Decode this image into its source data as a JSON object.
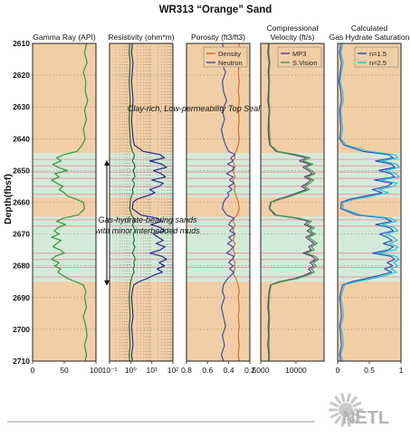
{
  "title": "WR313 “Orange” Sand",
  "y_axis_label": "Depth(fbsf)",
  "logo_text": "NETL",
  "annotations": [
    "Clay-rich, Low-permeability Top Seal",
    "Gas-hydrate-bearing sands",
    "with minor interbedded muds"
  ],
  "colors": {
    "background_tan": "#f2ceA6",
    "hydrate_band": "#d4ead8",
    "pink_line": "#e8a0a8",
    "gamma": "#2f9a3a",
    "resistivity_deep": "#2a2a8a",
    "resistivity_shallow": "#1a7a2a",
    "density": "#e06a30",
    "neutron": "#4a4aa8",
    "mp3": "#7a3a8a",
    "svision": "#3aa04a",
    "n15": "#3050c0",
    "n25": "#30c0d0"
  },
  "chart_data": {
    "type": "line",
    "title": "WR313 “Orange” Sand",
    "ylabel": "Depth(fbsf)",
    "ylim": [
      2610,
      2710
    ],
    "y_ticks": [
      2610,
      2620,
      2630,
      2640,
      2650,
      2660,
      2670,
      2680,
      2690,
      2700,
      2710
    ],
    "hydrate_zones": [
      [
        2644.5,
        2658.5
      ],
      [
        2664.5,
        2685.0
      ]
    ],
    "mud_lines": [
      2646.5,
      2648.5,
      2650.5,
      2652.5,
      2655.0,
      2657.5,
      2665.5,
      2667.5,
      2676.0,
      2678.0,
      2680.5,
      2683.5
    ],
    "depths": [
      2610,
      2613,
      2616,
      2619,
      2622,
      2625,
      2628,
      2631,
      2634,
      2637,
      2640,
      2642,
      2644,
      2645,
      2646,
      2647,
      2648,
      2649,
      2650,
      2651,
      2652,
      2653,
      2654,
      2655,
      2656,
      2657,
      2658,
      2659,
      2660,
      2662,
      2664,
      2665,
      2666,
      2667,
      2668,
      2669,
      2670,
      2671,
      2672,
      2673,
      2674,
      2675,
      2676,
      2677,
      2678,
      2679,
      2680,
      2681,
      2682,
      2683,
      2684,
      2685,
      2686,
      2688,
      2690,
      2693,
      2696,
      2699,
      2702,
      2705,
      2708,
      2710
    ],
    "tracks": [
      {
        "title": "Gamma Ray (API)",
        "scale": "linear",
        "xlim": [
          0,
          100
        ],
        "ticks": [
          0,
          50,
          100
        ],
        "tick_labels": [
          "0",
          "50",
          "100"
        ],
        "series": [
          {
            "color_key": "gamma",
            "values": [
              85,
              82,
              86,
              80,
              84,
              83,
              87,
              82,
              85,
              80,
              83,
              78,
              70,
              50,
              38,
              45,
              32,
              40,
              55,
              35,
              42,
              30,
              38,
              48,
              42,
              50,
              55,
              68,
              80,
              82,
              72,
              48,
              38,
              52,
              40,
              34,
              42,
              30,
              45,
              38,
              32,
              44,
              50,
              36,
              30,
              42,
              35,
              44,
              40,
              48,
              55,
              68,
              80,
              84,
              82,
              85,
              80,
              84,
              86,
              82,
              85,
              83
            ]
          }
        ]
      },
      {
        "title": "Resistivity (ohm*m)",
        "scale": "log",
        "xlim": [
          0.1,
          100
        ],
        "ticks": [
          0.1,
          1,
          10,
          100
        ],
        "tick_labels": [
          "10⁻¹",
          "10⁰",
          "10¹",
          "10²"
        ],
        "series": [
          {
            "color_key": "resistivity_deep",
            "values": [
              1.2,
              1.1,
              1.3,
              1.2,
              1.1,
              1.2,
              1.3,
              1.2,
              1.1,
              1.2,
              1.3,
              1.5,
              4,
              25,
              40,
              8,
              30,
              50,
              12,
              28,
              45,
              10,
              35,
              22,
              8,
              14,
              6,
              2,
              1.3,
              1.2,
              3,
              18,
              30,
              9,
              26,
              40,
              12,
              20,
              35,
              16,
              42,
              25,
              8,
              30,
              50,
              22,
              40,
              18,
              32,
              12,
              6,
              2.5,
              1.4,
              1.2,
              1.1,
              1.2,
              1.3,
              1.1,
              1.2,
              1.3,
              1.1,
              1.2
            ]
          },
          {
            "color_key": "resistivity_shallow",
            "values": [
              0.9,
              0.85,
              0.95,
              0.9,
              0.85,
              0.9,
              0.95,
              0.9,
              0.85,
              0.9,
              0.95,
              1.0,
              1.2,
              1.5,
              1.4,
              1.2,
              1.5,
              1.6,
              1.3,
              1.5,
              1.6,
              1.2,
              1.5,
              1.4,
              1.2,
              1.3,
              1.1,
              1.0,
              0.95,
              0.9,
              1.1,
              1.4,
              1.5,
              1.2,
              1.4,
              1.6,
              1.3,
              1.4,
              1.5,
              1.3,
              1.6,
              1.4,
              1.2,
              1.5,
              1.6,
              1.4,
              1.5,
              1.3,
              1.5,
              1.2,
              1.1,
              1.0,
              0.95,
              0.9,
              0.85,
              0.9,
              0.95,
              0.85,
              0.9,
              0.95,
              0.85,
              0.9
            ]
          }
        ]
      },
      {
        "title": "Porosity (ft3/ft3)",
        "scale": "linear",
        "reversed": true,
        "xlim": [
          0.8,
          0.2
        ],
        "ticks": [
          0.8,
          0.6,
          0.4,
          0.2
        ],
        "tick_labels": [
          "0.8",
          "0.6",
          "0.4",
          "0.2"
        ],
        "legend": [
          "Density",
          "Neutron"
        ],
        "series": [
          {
            "name": "Density",
            "color_key": "density",
            "values": [
              0.3,
              0.31,
              0.3,
              0.31,
              0.3,
              0.31,
              0.3,
              0.31,
              0.3,
              0.31,
              0.3,
              0.31,
              0.33,
              0.35,
              0.34,
              0.36,
              0.35,
              0.34,
              0.36,
              0.35,
              0.34,
              0.36,
              0.35,
              0.34,
              0.35,
              0.34,
              0.33,
              0.32,
              0.31,
              0.3,
              0.32,
              0.35,
              0.36,
              0.34,
              0.35,
              0.36,
              0.34,
              0.35,
              0.36,
              0.34,
              0.35,
              0.36,
              0.34,
              0.35,
              0.36,
              0.34,
              0.35,
              0.34,
              0.36,
              0.35,
              0.33,
              0.32,
              0.31,
              0.3,
              0.31,
              0.3,
              0.31,
              0.3,
              0.31,
              0.3,
              0.31,
              0.3
            ]
          },
          {
            "name": "Neutron",
            "color_key": "neutron",
            "values": [
              0.46,
              0.44,
              0.47,
              0.43,
              0.46,
              0.45,
              0.42,
              0.46,
              0.44,
              0.47,
              0.45,
              0.43,
              0.4,
              0.34,
              0.38,
              0.36,
              0.41,
              0.35,
              0.37,
              0.42,
              0.36,
              0.39,
              0.35,
              0.4,
              0.37,
              0.41,
              0.4,
              0.43,
              0.45,
              0.46,
              0.42,
              0.35,
              0.38,
              0.4,
              0.36,
              0.39,
              0.34,
              0.4,
              0.37,
              0.41,
              0.36,
              0.38,
              0.42,
              0.35,
              0.37,
              0.4,
              0.36,
              0.39,
              0.35,
              0.38,
              0.41,
              0.43,
              0.45,
              0.46,
              0.44,
              0.47,
              0.45,
              0.43,
              0.46,
              0.44,
              0.47,
              0.45
            ]
          }
        ]
      },
      {
        "title": "Compressional\nVelocity (ft/s)",
        "scale": "linear",
        "xlim": [
          5000,
          14000
        ],
        "ticks": [
          5000,
          10000
        ],
        "tick_labels": [
          "5000",
          "10000"
        ],
        "legend": [
          "MP3",
          "S.Vision"
        ],
        "series": [
          {
            "name": "MP3",
            "color_key": "mp3",
            "values": [
              6100,
              6000,
              6200,
              6050,
              6150,
              6100,
              6000,
              6200,
              6100,
              6050,
              6150,
              6300,
              7200,
              9500,
              11500,
              10500,
              12000,
              11000,
              11800,
              12300,
              11200,
              12100,
              11600,
              10800,
              11500,
              10200,
              9000,
              7500,
              6400,
              6200,
              7000,
              10000,
              11800,
              11200,
              12200,
              11600,
              12400,
              11400,
              12000,
              12600,
              11800,
              12200,
              11000,
              12300,
              12800,
              12000,
              12500,
              11800,
              12200,
              11200,
              9800,
              7600,
              6400,
              6200,
              6100,
              6000,
              6150,
              6050,
              6100,
              6000,
              6150,
              6100
            ]
          },
          {
            "name": "S.Vision",
            "color_key": "svision",
            "values": [
              6200,
              6150,
              6300,
              6200,
              6250,
              6200,
              6150,
              6300,
              6200,
              6250,
              6300,
              6400,
              7400,
              10000,
              12000,
              11000,
              12400,
              11400,
              12200,
              12700,
              11600,
              12500,
              12000,
              11200,
              11900,
              10600,
              9400,
              7800,
              6500,
              6300,
              7200,
              10400,
              12200,
              11600,
              12600,
              12000,
              12800,
              11800,
              12400,
              13000,
              12200,
              12600,
              11400,
              12700,
              13200,
              12400,
              12900,
              12200,
              12600,
              11600,
              10200,
              7900,
              6500,
              6300,
              6200,
              6150,
              6250,
              6200,
              6200,
              6150,
              6250,
              6200
            ]
          }
        ]
      },
      {
        "title": "Calculated\nGas Hydrate Saturation",
        "scale": "linear",
        "xlim": [
          0,
          1
        ],
        "ticks": [
          0,
          0.5,
          1
        ],
        "tick_labels": [
          "0",
          "0.5",
          "1"
        ],
        "legend": [
          "n=1.5",
          "n=2.5"
        ],
        "series": [
          {
            "name": "n=1.5",
            "color_key": "n15",
            "values": [
              0.05,
              0.03,
              0.06,
              0.04,
              0.02,
              0.05,
              0.06,
              0.03,
              0.04,
              0.05,
              0.03,
              0.1,
              0.4,
              0.8,
              0.88,
              0.6,
              0.85,
              0.9,
              0.65,
              0.84,
              0.9,
              0.58,
              0.86,
              0.78,
              0.55,
              0.7,
              0.45,
              0.2,
              0.06,
              0.05,
              0.3,
              0.75,
              0.85,
              0.6,
              0.82,
              0.88,
              0.66,
              0.78,
              0.86,
              0.72,
              0.88,
              0.8,
              0.55,
              0.84,
              0.9,
              0.78,
              0.87,
              0.74,
              0.85,
              0.66,
              0.45,
              0.22,
              0.08,
              0.05,
              0.03,
              0.05,
              0.06,
              0.03,
              0.05,
              0.06,
              0.03,
              0.05
            ]
          },
          {
            "name": "n=2.5",
            "color_key": "n25",
            "values": [
              0.08,
              0.05,
              0.09,
              0.06,
              0.04,
              0.08,
              0.09,
              0.05,
              0.06,
              0.08,
              0.05,
              0.14,
              0.5,
              0.9,
              0.95,
              0.7,
              0.93,
              0.97,
              0.75,
              0.92,
              0.97,
              0.68,
              0.94,
              0.88,
              0.65,
              0.8,
              0.55,
              0.28,
              0.09,
              0.08,
              0.38,
              0.84,
              0.93,
              0.7,
              0.9,
              0.95,
              0.76,
              0.88,
              0.94,
              0.82,
              0.95,
              0.9,
              0.65,
              0.92,
              0.97,
              0.88,
              0.95,
              0.84,
              0.93,
              0.76,
              0.55,
              0.3,
              0.11,
              0.08,
              0.05,
              0.08,
              0.09,
              0.05,
              0.08,
              0.09,
              0.05,
              0.08
            ]
          }
        ]
      }
    ]
  }
}
